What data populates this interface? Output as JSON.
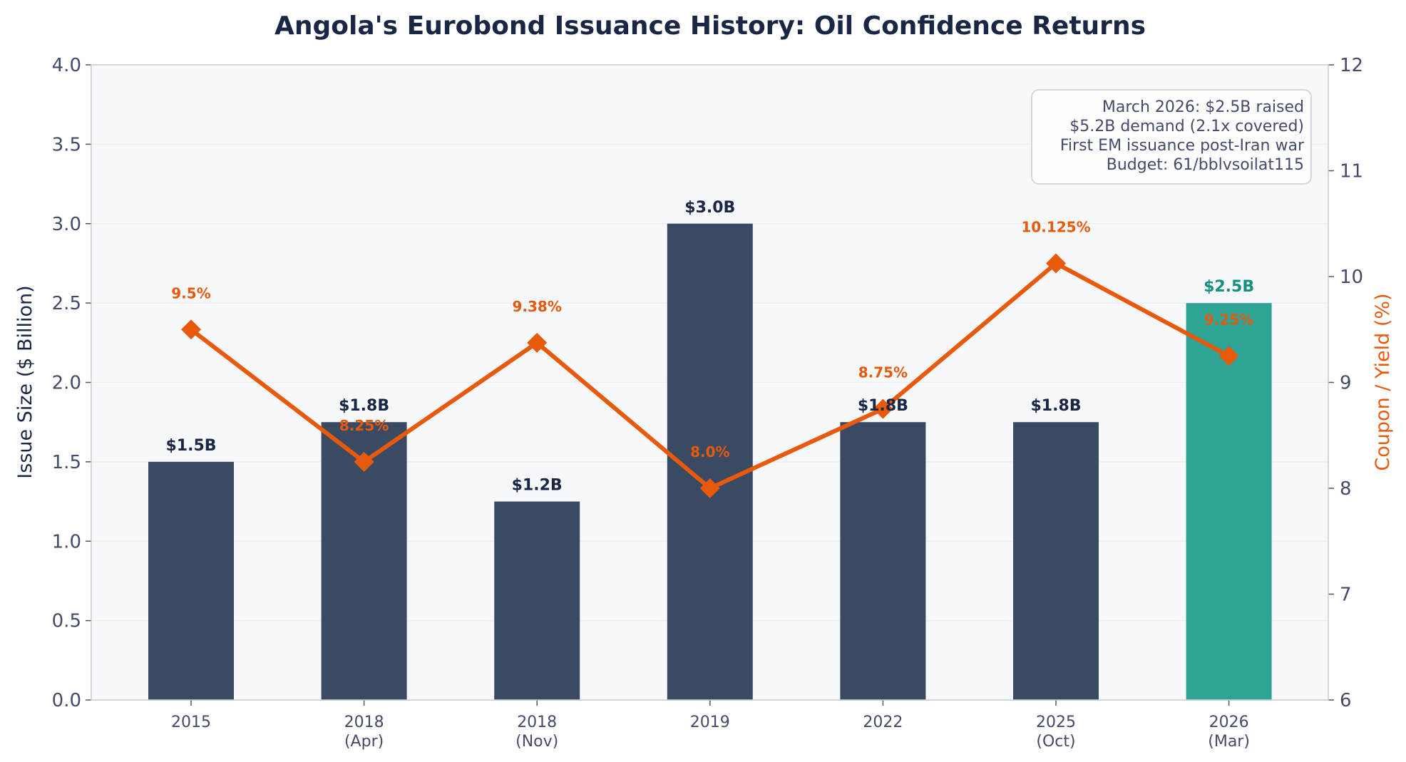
{
  "chart_data": {
    "type": "bar+line",
    "title": "Angola's Eurobond Issuance History: Oil Confidence Returns",
    "categories": [
      [
        "2015"
      ],
      [
        "2018",
        "(Apr)"
      ],
      [
        "2018",
        "(Nov)"
      ],
      [
        "2019"
      ],
      [
        "2022"
      ],
      [
        "2025",
        "(Oct)"
      ],
      [
        "2026",
        "(Mar)"
      ]
    ],
    "bars": {
      "name": "Issue Size ($ Billion)",
      "values": [
        1.5,
        1.75,
        1.25,
        3.0,
        1.75,
        1.75,
        2.5
      ],
      "labels": [
        "$1.5B",
        "$1.8B",
        "$1.2B",
        "$3.0B",
        "$1.8B",
        "$1.8B",
        "$2.5B"
      ],
      "colors": [
        "#3b4a63",
        "#3b4a63",
        "#3b4a63",
        "#3b4a63",
        "#3b4a63",
        "#3b4a63",
        "#2ea497"
      ],
      "label_colors": [
        "#1a2744",
        "#1a2744",
        "#1a2744",
        "#1a2744",
        "#1a2744",
        "#1a2744",
        "#13917f"
      ]
    },
    "line": {
      "name": "Coupon / Yield (%)",
      "values": [
        9.5,
        8.25,
        9.375,
        8.0,
        8.75,
        10.125,
        9.25
      ],
      "labels": [
        "9.5%",
        "8.25%",
        "9.38%",
        "8.0%",
        "8.75%",
        "10.125%",
        "9.25%"
      ],
      "color": "#e8590c"
    },
    "ylabel": "Issue Size ($ Billion)",
    "y2label": "Coupon / Yield (%)",
    "ylim": [
      0,
      4
    ],
    "y2lim": [
      6,
      12
    ],
    "yticks": [
      "0.0",
      "0.5",
      "1.0",
      "1.5",
      "2.0",
      "2.5",
      "3.0",
      "3.5",
      "4.0"
    ],
    "y2ticks": [
      "6",
      "7",
      "8",
      "9",
      "10",
      "11",
      "12"
    ],
    "grid": true,
    "annotation": {
      "lines": [
        "March 2026: $2.5B raised",
        "$5.2B demand (2.1x covered)",
        "First EM issuance post-Iran war",
        "Budget: 61/bblvsoilat115"
      ],
      "placement": "top-right"
    }
  }
}
